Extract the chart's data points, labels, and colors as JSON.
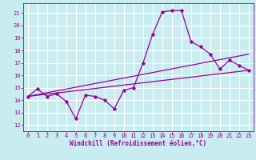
{
  "xlabel": "Windchill (Refroidissement éolien,°C)",
  "xlim": [
    -0.5,
    23.5
  ],
  "ylim": [
    11.5,
    21.8
  ],
  "yticks": [
    12,
    13,
    14,
    15,
    16,
    17,
    18,
    19,
    20,
    21
  ],
  "xticks": [
    0,
    1,
    2,
    3,
    4,
    5,
    6,
    7,
    8,
    9,
    10,
    11,
    12,
    13,
    14,
    15,
    16,
    17,
    18,
    19,
    20,
    21,
    22,
    23
  ],
  "background_color": "#c8ecf0",
  "line_color": "#990099",
  "grid_color": "#ffffff",
  "line1_x": [
    0,
    1,
    2,
    3,
    4,
    5,
    6,
    7,
    8,
    9,
    10,
    11,
    12,
    13,
    14,
    15,
    16,
    17,
    18,
    19,
    20,
    21,
    22,
    23
  ],
  "line1_y": [
    14.3,
    14.9,
    14.3,
    14.5,
    13.9,
    12.5,
    14.4,
    14.3,
    14.0,
    13.3,
    14.8,
    15.0,
    17.0,
    19.3,
    21.1,
    21.2,
    21.2,
    18.7,
    18.3,
    17.7,
    16.5,
    17.2,
    16.8,
    16.4
  ],
  "line2_x": [
    0,
    23
  ],
  "line2_y": [
    14.3,
    16.4
  ],
  "line3_x": [
    0,
    23
  ],
  "line3_y": [
    14.3,
    17.7
  ]
}
